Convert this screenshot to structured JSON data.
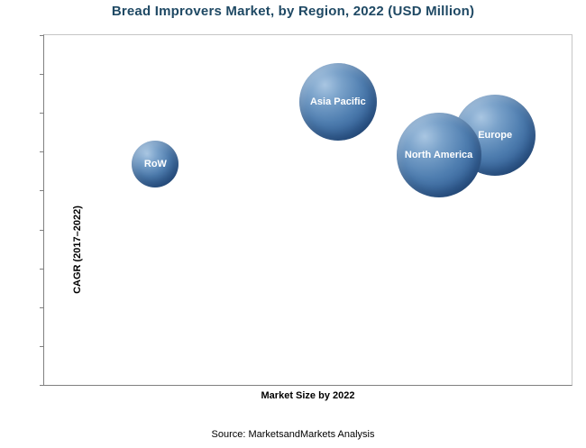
{
  "title": "Bread Improvers Market, by Region, 2022 (USD Million)",
  "source": "Source: MarketsandMarkets Analysis",
  "colors": {
    "title": "#1F4964",
    "bubble_base": "#4a79ad",
    "bubble_highlight": "#a9c6e2",
    "bubble_shadow": "#27496f",
    "axis_line": "#808080",
    "plot_border": "#c6c6c6"
  },
  "chart_data": {
    "type": "bubble",
    "title": "Bread Improvers Market, by Region, 2022 (USD Million)",
    "xlabel": "Market Size by 2022",
    "ylabel": "CAGR (2017–2022)",
    "axis_numeric_labels": false,
    "grid": false,
    "y_tick_count": 10,
    "points": [
      {
        "label": "RoW",
        "x_pct": 21.1,
        "y_pct": 63.1,
        "r": 26
      },
      {
        "label": "Asia Pacific",
        "x_pct": 55.7,
        "y_pct": 80.8,
        "r": 43
      },
      {
        "label": "Europe",
        "x_pct": 85.5,
        "y_pct": 71.5,
        "r": 45
      },
      {
        "label": "North America",
        "x_pct": 74.8,
        "y_pct": 65.6,
        "r": 47
      }
    ]
  }
}
